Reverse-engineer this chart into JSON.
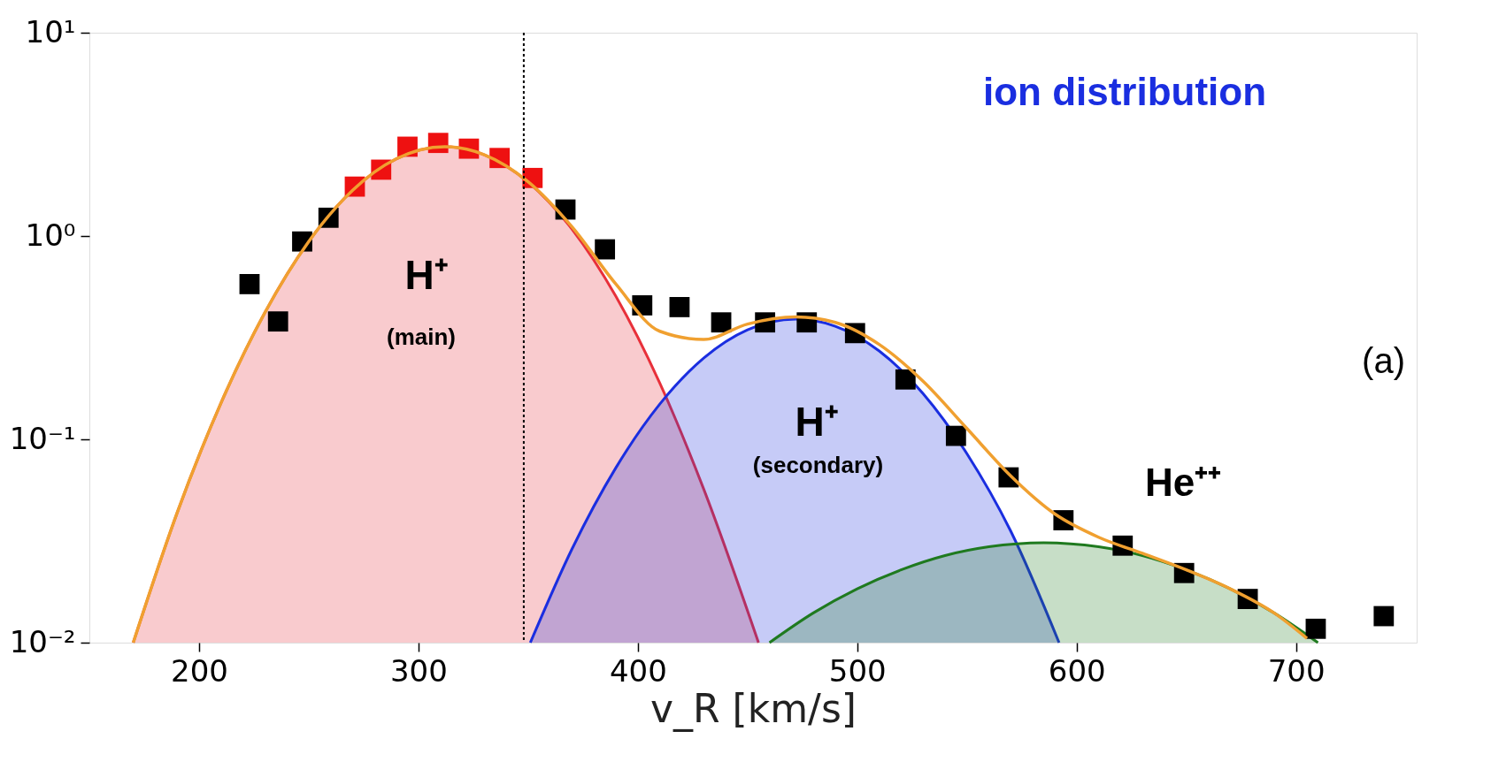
{
  "chart_data": {
    "type": "scatter",
    "xlabel": "v_R [km/s]",
    "xlim": [
      150,
      755
    ],
    "xticks": [
      200,
      300,
      400,
      500,
      600,
      700
    ],
    "ylim": [
      0.01,
      10
    ],
    "yticks": [
      {
        "value": 0.01,
        "label": "10⁻²"
      },
      {
        "value": 0.1,
        "label": "10⁻¹"
      },
      {
        "value": 1,
        "label": "10⁰"
      },
      {
        "value": 10,
        "label": "10¹"
      }
    ],
    "log": "y",
    "grid": false,
    "series": [
      {
        "type": "area",
        "color": "#e8303a",
        "x": [
          170,
          190,
          210,
          230,
          250,
          270,
          290,
          312,
          330,
          350,
          370,
          390,
          410,
          430,
          455
        ],
        "values": [
          0.01,
          0.0435,
          0.151,
          0.42,
          0.94,
          1.68,
          2.4,
          2.75,
          2.51,
          1.84,
          1.08,
          0.505,
          0.189,
          0.057,
          0.01
        ]
      },
      {
        "type": "area",
        "color": "#1a2ee0",
        "x": [
          351,
          370,
          390,
          410,
          430,
          450,
          472,
          490,
          510,
          530,
          550,
          570,
          592
        ],
        "values": [
          0.01,
          0.0289,
          0.0725,
          0.149,
          0.251,
          0.346,
          0.39,
          0.36,
          0.272,
          0.168,
          0.085,
          0.0353,
          0.01
        ]
      },
      {
        "type": "area",
        "color": "#1f7a1f",
        "x": [
          460,
          480,
          500,
          520,
          540,
          560,
          585,
          610,
          630,
          650,
          670,
          690,
          710
        ],
        "values": [
          0.01,
          0.014,
          0.0184,
          0.0228,
          0.0268,
          0.0296,
          0.031,
          0.0296,
          0.0268,
          0.0228,
          0.0184,
          0.014,
          0.01
        ]
      },
      {
        "type": "line",
        "color": "#f0a030",
        "x": [
          170,
          190,
          210,
          230,
          250,
          270,
          290,
          312,
          330,
          350,
          370,
          390,
          410,
          430,
          450,
          472,
          490,
          510,
          530,
          550,
          570,
          590,
          610,
          630,
          650,
          670,
          690,
          705
        ],
        "values": [
          0.01,
          0.0435,
          0.151,
          0.42,
          0.94,
          1.68,
          2.4,
          2.75,
          2.51,
          1.85,
          1.11,
          0.58,
          0.34,
          0.31,
          0.369,
          0.4,
          0.376,
          0.293,
          0.193,
          0.113,
          0.066,
          0.043,
          0.033,
          0.0275,
          0.0228,
          0.0184,
          0.014,
          0.0105
        ]
      },
      {
        "marker": "square",
        "color": "#000000",
        "x": [
          223,
          236,
          247,
          259,
          367,
          385,
          402,
          419,
          438,
          458,
          477,
          499,
          522,
          545,
          569,
          594,
          621,
          649,
          678,
          709,
          740
        ],
        "values": [
          0.58,
          0.38,
          0.94,
          1.23,
          1.35,
          0.86,
          0.456,
          0.447,
          0.376,
          0.376,
          0.376,
          0.333,
          0.197,
          0.104,
          0.065,
          0.04,
          0.03,
          0.022,
          0.0164,
          0.0117,
          0.0135
        ]
      },
      {
        "type": "scatter",
        "marker": "square",
        "color": "#ee1111",
        "x": [
          271,
          283,
          295,
          309,
          323,
          337,
          352
        ],
        "values": [
          1.75,
          2.12,
          2.75,
          2.87,
          2.69,
          2.42,
          1.93
        ]
      }
    ],
    "ref_lines": [
      {
        "axis": "x",
        "value": 348,
        "color": "#000000",
        "line_style": "dotted"
      }
    ],
    "annotations": [
      "ion distribution",
      "H⁺",
      "(main)",
      "H⁺",
      "(secondary)",
      "He⁺⁺",
      "(a)"
    ]
  }
}
